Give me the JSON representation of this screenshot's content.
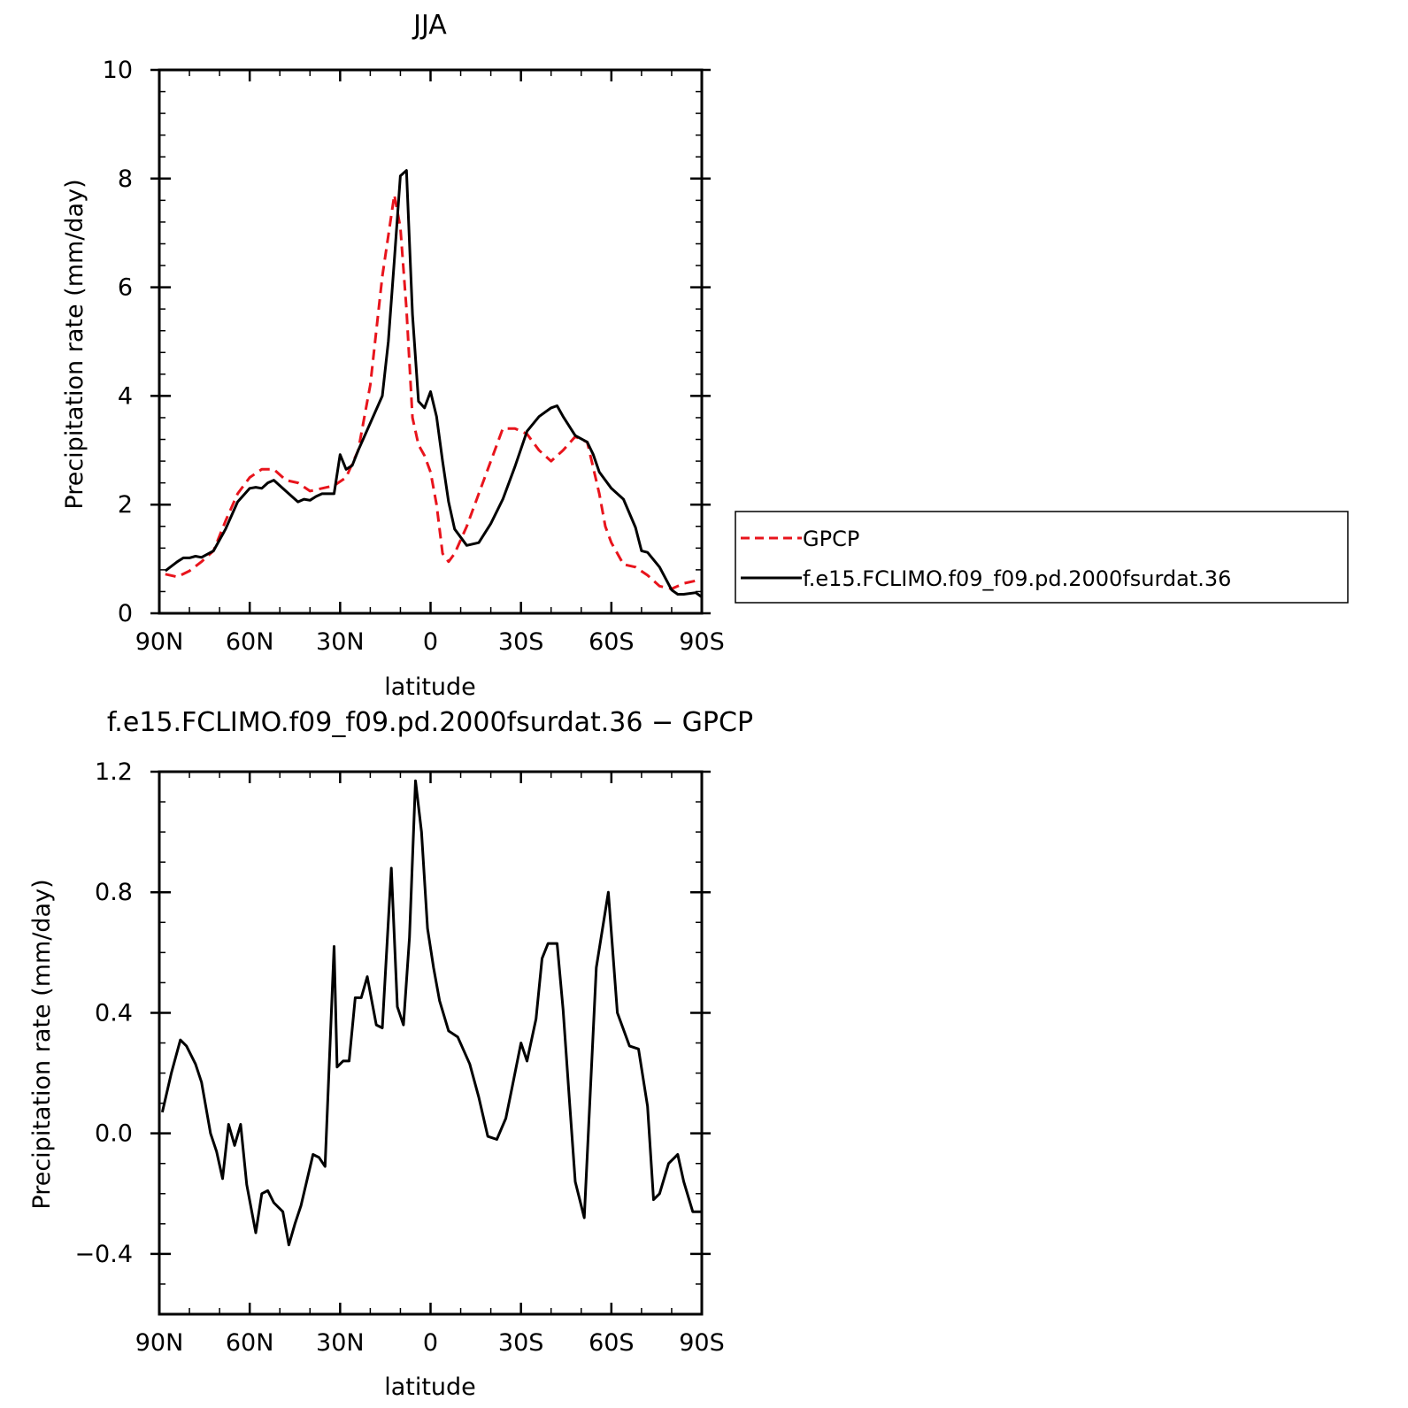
{
  "charts": {
    "top": {
      "title": "JJA",
      "xlabel": "latitude",
      "ylabel": "Precipitation rate (mm/day)",
      "y_tick_labels": [
        "0",
        "2",
        "4",
        "6",
        "8",
        "10"
      ],
      "x_tick_labels": [
        "90N",
        "60N",
        "30N",
        "0",
        "30S",
        "60S",
        "90S"
      ]
    },
    "bottom": {
      "title": "f.e15.FCLIMO.f09_f09.pd.2000fsurdat.36 − GPCP",
      "xlabel": "latitude",
      "ylabel": "Precipitation rate (mm/day)",
      "y_tick_labels": [
        "−0.4",
        "0.0",
        "0.4",
        "0.8",
        "1.2"
      ],
      "x_tick_labels": [
        "90N",
        "60N",
        "30N",
        "0",
        "30S",
        "60S",
        "90S"
      ]
    }
  },
  "legend": {
    "entries": [
      {
        "label": "GPCP",
        "color": "#e8141c",
        "style": "dashed"
      },
      {
        "label": "f.e15.FCLIMO.f09_f09.pd.2000fsurdat.36",
        "color": "#000000",
        "style": "solid"
      }
    ],
    "placement": "right of top chart"
  },
  "chart_data": [
    {
      "type": "line",
      "title": "JJA",
      "xlabel": "latitude",
      "ylabel": "Precipitation rate (mm/day)",
      "x_axis": "latitude from 90N (left) to 90S (right); negative = south",
      "xlim": [
        90,
        -90
      ],
      "ylim": [
        0,
        10
      ],
      "x_ticks": [
        90,
        60,
        30,
        0,
        -30,
        -60,
        -90
      ],
      "y_ticks": [
        0,
        2,
        4,
        6,
        8,
        10
      ],
      "series": [
        {
          "name": "GPCP",
          "color": "#e8141c",
          "dash": "dashed",
          "x": [
            88,
            84,
            80,
            76,
            72,
            68,
            64,
            60,
            56,
            52,
            48,
            44,
            40,
            36,
            32,
            28,
            24,
            20,
            16,
            12,
            10,
            8,
            6,
            4,
            2,
            0,
            -2,
            -4,
            -6,
            -8,
            -12,
            -16,
            -20,
            -24,
            -28,
            -32,
            -36,
            -40,
            -42,
            -44,
            -48,
            -52,
            -56,
            -58,
            -60,
            -64,
            -68,
            -72,
            -76,
            -80,
            -84,
            -88,
            -90
          ],
          "y": [
            0.72,
            0.67,
            0.78,
            0.95,
            1.15,
            1.7,
            2.2,
            2.5,
            2.65,
            2.65,
            2.45,
            2.4,
            2.25,
            2.3,
            2.35,
            2.5,
            3.0,
            4.2,
            6.2,
            7.7,
            7.1,
            5.6,
            3.6,
            3.1,
            2.9,
            2.6,
            2.0,
            1.1,
            0.95,
            1.1,
            1.6,
            2.2,
            2.8,
            3.4,
            3.4,
            3.3,
            3.0,
            2.8,
            2.9,
            3.0,
            3.25,
            3.15,
            2.2,
            1.6,
            1.3,
            0.9,
            0.85,
            0.7,
            0.5,
            0.45,
            0.55,
            0.6,
            0.6
          ]
        },
        {
          "name": "f.e15.FCLIMO.f09_f09.pd.2000fsurdat.36",
          "color": "#000000",
          "dash": "solid",
          "x": [
            88,
            84,
            82,
            80,
            78,
            76,
            72,
            68,
            64,
            60,
            58,
            56,
            54,
            52,
            48,
            44,
            42,
            40,
            38,
            36,
            32,
            30,
            28,
            26,
            24,
            20,
            16,
            14,
            12,
            10,
            8,
            6,
            4,
            2,
            0,
            -2,
            -4,
            -6,
            -8,
            -12,
            -16,
            -20,
            -24,
            -28,
            -32,
            -36,
            -40,
            -42,
            -44,
            -48,
            -52,
            -54,
            -56,
            -60,
            -64,
            -68,
            -70,
            -72,
            -76,
            -80,
            -82,
            -84,
            -88,
            -90
          ],
          "y": [
            0.78,
            0.95,
            1.02,
            1.02,
            1.05,
            1.03,
            1.15,
            1.55,
            2.05,
            2.3,
            2.32,
            2.3,
            2.4,
            2.45,
            2.25,
            2.05,
            2.1,
            2.08,
            2.15,
            2.2,
            2.2,
            2.92,
            2.65,
            2.72,
            3.0,
            3.5,
            4.0,
            5.0,
            6.5,
            8.05,
            8.15,
            5.5,
            3.9,
            3.78,
            4.08,
            3.62,
            2.8,
            2.05,
            1.55,
            1.25,
            1.3,
            1.65,
            2.1,
            2.7,
            3.35,
            3.62,
            3.78,
            3.82,
            3.62,
            3.27,
            3.15,
            2.92,
            2.6,
            2.3,
            2.1,
            1.58,
            1.15,
            1.12,
            0.85,
            0.43,
            0.35,
            0.35,
            0.38,
            0.3
          ]
        }
      ]
    },
    {
      "type": "line",
      "title": "f.e15.FCLIMO.f09_f09.pd.2000fsurdat.36 − GPCP",
      "xlabel": "latitude",
      "ylabel": "Precipitation rate (mm/day)",
      "x_axis": "latitude from 90N (left) to 90S (right); negative = south",
      "xlim": [
        90,
        -90
      ],
      "ylim": [
        -0.6,
        1.2
      ],
      "x_ticks": [
        90,
        60,
        30,
        0,
        -30,
        -60,
        -90
      ],
      "y_ticks": [
        -0.4,
        0.0,
        0.4,
        0.8,
        1.2
      ],
      "series": [
        {
          "color": "#000000",
          "dash": "solid",
          "x": [
            89,
            86,
            83,
            81,
            78,
            76,
            73,
            71,
            69,
            67,
            65,
            63,
            61,
            58,
            56,
            54,
            52,
            49,
            47,
            45,
            43,
            39,
            37,
            35,
            32,
            31,
            29,
            27,
            25,
            23,
            21,
            18,
            16,
            13,
            11,
            9,
            7,
            5,
            3,
            1,
            -1,
            -3,
            -6,
            -9,
            -13,
            -16,
            -19,
            -22,
            -25,
            -27,
            -30,
            -32,
            -35,
            -37,
            -39,
            -42,
            -44,
            -46,
            -48,
            -51,
            -55,
            -59,
            -62,
            -66,
            -69,
            -72,
            -74,
            -76,
            -79,
            -82,
            -84,
            -87,
            -90
          ],
          "y": [
            0.07,
            0.2,
            0.31,
            0.29,
            0.23,
            0.17,
            0.0,
            -0.06,
            -0.15,
            0.03,
            -0.04,
            0.03,
            -0.17,
            -0.33,
            -0.2,
            -0.19,
            -0.23,
            -0.26,
            -0.37,
            -0.3,
            -0.24,
            -0.07,
            -0.08,
            -0.11,
            0.62,
            0.22,
            0.24,
            0.24,
            0.45,
            0.45,
            0.52,
            0.36,
            0.35,
            0.88,
            0.42,
            0.36,
            0.65,
            1.17,
            1.0,
            0.68,
            0.55,
            0.44,
            0.34,
            0.32,
            0.23,
            0.12,
            -0.01,
            -0.02,
            0.05,
            0.15,
            0.3,
            0.24,
            0.38,
            0.58,
            0.63,
            0.63,
            0.41,
            0.12,
            -0.16,
            -0.28,
            0.55,
            0.8,
            0.4,
            0.29,
            0.28,
            0.09,
            -0.22,
            -0.2,
            -0.1,
            -0.07,
            -0.16,
            -0.26,
            -0.26
          ]
        }
      ]
    }
  ]
}
